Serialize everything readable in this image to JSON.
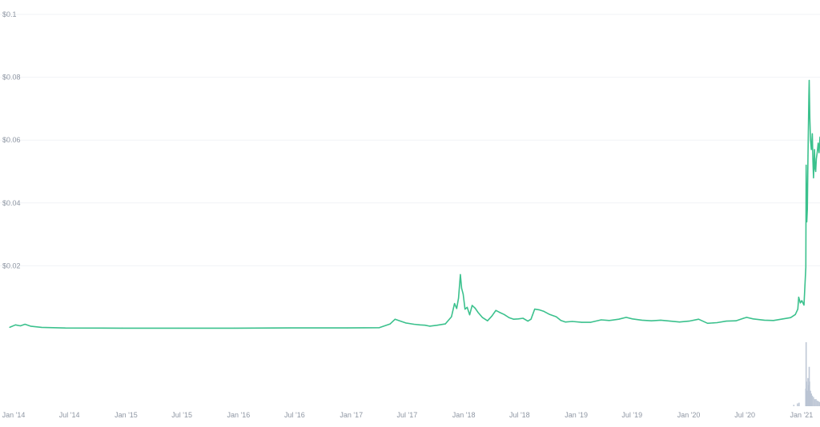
{
  "chart_data": {
    "type": "line",
    "title": "",
    "xlabel": "",
    "ylabel": "",
    "x_range": [
      "2014-01-01",
      "2021-03-15"
    ],
    "ylim": [
      0,
      0.1
    ],
    "grid": true,
    "y_ticks": [
      {
        "value": 0.1,
        "label": "$0.1"
      },
      {
        "value": 0.08,
        "label": "$0.08"
      },
      {
        "value": 0.06,
        "label": "$0.06"
      },
      {
        "value": 0.04,
        "label": "$0.04"
      },
      {
        "value": 0.02,
        "label": "$0.02"
      }
    ],
    "x_ticks": [
      {
        "date": "2014-01-01",
        "label": "Jan '14"
      },
      {
        "date": "2014-07-01",
        "label": "Jul '14"
      },
      {
        "date": "2015-01-01",
        "label": "Jan '15"
      },
      {
        "date": "2015-07-01",
        "label": "Jul '15"
      },
      {
        "date": "2016-01-01",
        "label": "Jan '16"
      },
      {
        "date": "2016-07-01",
        "label": "Jul '16"
      },
      {
        "date": "2017-01-01",
        "label": "Jan '17"
      },
      {
        "date": "2017-07-01",
        "label": "Jul '17"
      },
      {
        "date": "2018-01-01",
        "label": "Jan '18"
      },
      {
        "date": "2018-07-01",
        "label": "Jul '18"
      },
      {
        "date": "2019-01-01",
        "label": "Jan '19"
      },
      {
        "date": "2019-07-01",
        "label": "Jul '19"
      },
      {
        "date": "2020-01-01",
        "label": "Jan '20"
      },
      {
        "date": "2020-07-01",
        "label": "Jul '20"
      },
      {
        "date": "2021-01-01",
        "label": "Jan '21"
      }
    ],
    "series": [
      {
        "color": "#3bc18d",
        "points": [
          [
            "2014-01-01",
            0.0004
          ],
          [
            "2014-01-20",
            0.0012
          ],
          [
            "2014-02-05",
            0.0009
          ],
          [
            "2014-02-20",
            0.0014
          ],
          [
            "2014-03-10",
            0.0008
          ],
          [
            "2014-04-15",
            0.0004
          ],
          [
            "2014-07-01",
            0.0002
          ],
          [
            "2015-01-01",
            0.00015
          ],
          [
            "2015-07-01",
            0.00014
          ],
          [
            "2016-01-01",
            0.00015
          ],
          [
            "2016-07-01",
            0.00024
          ],
          [
            "2017-01-01",
            0.00022
          ],
          [
            "2017-04-15",
            0.0003
          ],
          [
            "2017-05-20",
            0.0015
          ],
          [
            "2017-06-05",
            0.003
          ],
          [
            "2017-06-20",
            0.0025
          ],
          [
            "2017-07-10",
            0.0018
          ],
          [
            "2017-08-05",
            0.0014
          ],
          [
            "2017-08-25",
            0.0012
          ],
          [
            "2017-09-10",
            0.0011
          ],
          [
            "2017-09-25",
            0.0008
          ],
          [
            "2017-10-20",
            0.0011
          ],
          [
            "2017-11-15",
            0.0015
          ],
          [
            "2017-12-05",
            0.0038
          ],
          [
            "2017-12-15",
            0.008
          ],
          [
            "2017-12-22",
            0.0064
          ],
          [
            "2017-12-28",
            0.0097
          ],
          [
            "2018-01-03",
            0.0172
          ],
          [
            "2018-01-07",
            0.0128
          ],
          [
            "2018-01-12",
            0.011
          ],
          [
            "2018-01-18",
            0.0062
          ],
          [
            "2018-01-25",
            0.0068
          ],
          [
            "2018-02-02",
            0.0044
          ],
          [
            "2018-02-10",
            0.0074
          ],
          [
            "2018-02-20",
            0.0065
          ],
          [
            "2018-03-01",
            0.0052
          ],
          [
            "2018-03-15",
            0.0036
          ],
          [
            "2018-04-01",
            0.0025
          ],
          [
            "2018-04-15",
            0.004
          ],
          [
            "2018-04-28",
            0.0058
          ],
          [
            "2018-05-10",
            0.0052
          ],
          [
            "2018-05-25",
            0.0045
          ],
          [
            "2018-06-10",
            0.0035
          ],
          [
            "2018-06-25",
            0.003
          ],
          [
            "2018-07-10",
            0.0031
          ],
          [
            "2018-07-25",
            0.0033
          ],
          [
            "2018-08-10",
            0.0024
          ],
          [
            "2018-08-20",
            0.003
          ],
          [
            "2018-09-01",
            0.0062
          ],
          [
            "2018-09-15",
            0.006
          ],
          [
            "2018-10-01",
            0.0055
          ],
          [
            "2018-10-20",
            0.0045
          ],
          [
            "2018-11-10",
            0.0038
          ],
          [
            "2018-11-25",
            0.0026
          ],
          [
            "2018-12-10",
            0.0021
          ],
          [
            "2019-01-01",
            0.0023
          ],
          [
            "2019-02-01",
            0.002
          ],
          [
            "2019-03-01",
            0.002
          ],
          [
            "2019-04-05",
            0.0028
          ],
          [
            "2019-05-01",
            0.0026
          ],
          [
            "2019-06-01",
            0.003
          ],
          [
            "2019-06-25",
            0.0036
          ],
          [
            "2019-07-15",
            0.0031
          ],
          [
            "2019-08-15",
            0.0027
          ],
          [
            "2019-09-15",
            0.0025
          ],
          [
            "2019-10-15",
            0.0027
          ],
          [
            "2019-11-15",
            0.0024
          ],
          [
            "2019-12-15",
            0.0021
          ],
          [
            "2020-01-15",
            0.0024
          ],
          [
            "2020-02-15",
            0.003
          ],
          [
            "2020-03-15",
            0.0017
          ],
          [
            "2020-04-15",
            0.0019
          ],
          [
            "2020-05-15",
            0.0024
          ],
          [
            "2020-06-15",
            0.0025
          ],
          [
            "2020-07-10",
            0.0033
          ],
          [
            "2020-07-20",
            0.0036
          ],
          [
            "2020-08-10",
            0.0031
          ],
          [
            "2020-09-15",
            0.0027
          ],
          [
            "2020-10-15",
            0.0026
          ],
          [
            "2020-11-15",
            0.0031
          ],
          [
            "2020-12-10",
            0.0035
          ],
          [
            "2020-12-25",
            0.0045
          ],
          [
            "2021-01-02",
            0.0062
          ],
          [
            "2021-01-05",
            0.01
          ],
          [
            "2021-01-10",
            0.0082
          ],
          [
            "2021-01-15",
            0.0089
          ],
          [
            "2021-01-22",
            0.0075
          ],
          [
            "2021-01-28",
            0.0195
          ],
          [
            "2021-01-29",
            0.052
          ],
          [
            "2021-01-31",
            0.034
          ],
          [
            "2021-02-02",
            0.038
          ],
          [
            "2021-02-04",
            0.055
          ],
          [
            "2021-02-07",
            0.074
          ],
          [
            "2021-02-08",
            0.079
          ],
          [
            "2021-02-10",
            0.067
          ],
          [
            "2021-02-12",
            0.06
          ],
          [
            "2021-02-15",
            0.057
          ],
          [
            "2021-02-18",
            0.062
          ],
          [
            "2021-02-20",
            0.054
          ],
          [
            "2021-02-22",
            0.048
          ],
          [
            "2021-02-25",
            0.057
          ],
          [
            "2021-02-27",
            0.051
          ],
          [
            "2021-03-01",
            0.05
          ],
          [
            "2021-03-03",
            0.054
          ],
          [
            "2021-03-06",
            0.056
          ],
          [
            "2021-03-09",
            0.059
          ],
          [
            "2021-03-12",
            0.056
          ],
          [
            "2021-03-15",
            0.061
          ]
        ]
      }
    ],
    "volume": {
      "color": "#b8c2d2",
      "max": 1,
      "bars": [
        [
          "2020-12-20",
          0.02
        ],
        [
          "2021-01-01",
          0.04
        ],
        [
          "2021-01-06",
          0.05
        ],
        [
          "2021-01-28",
          0.25
        ],
        [
          "2021-01-29",
          0.91
        ],
        [
          "2021-01-30",
          0.35
        ],
        [
          "2021-02-01",
          0.22
        ],
        [
          "2021-02-04",
          0.4
        ],
        [
          "2021-02-05",
          0.3
        ],
        [
          "2021-02-08",
          0.56
        ],
        [
          "2021-02-09",
          0.35
        ],
        [
          "2021-02-12",
          0.22
        ],
        [
          "2021-02-15",
          0.18
        ],
        [
          "2021-02-18",
          0.15
        ],
        [
          "2021-02-22",
          0.13
        ],
        [
          "2021-02-26",
          0.1
        ],
        [
          "2021-03-02",
          0.1
        ],
        [
          "2021-03-06",
          0.08
        ],
        [
          "2021-03-10",
          0.07
        ],
        [
          "2021-03-14",
          0.06
        ]
      ]
    }
  }
}
